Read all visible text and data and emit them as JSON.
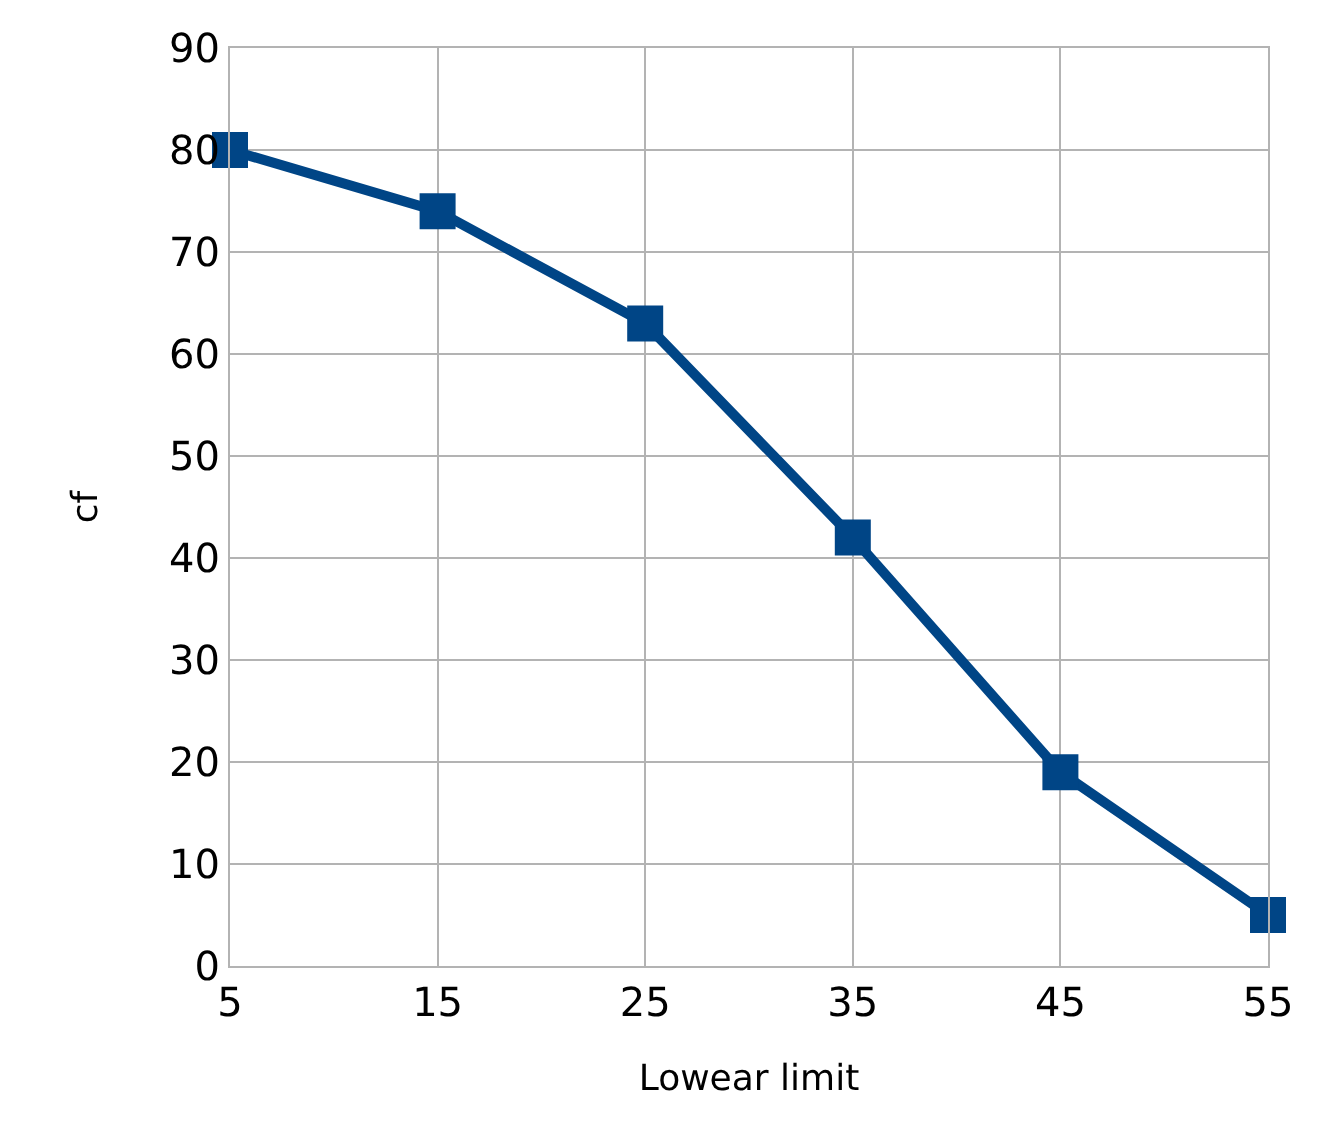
{
  "chart_data": {
    "type": "line",
    "xlabel": "Lowear limit",
    "ylabel": "cf",
    "x": [
      5,
      15,
      25,
      35,
      45,
      55
    ],
    "series": [
      {
        "color": "#004586",
        "values": [
          80,
          74,
          63,
          42,
          19,
          5
        ]
      }
    ],
    "xlim": [
      5,
      55
    ],
    "xticks": [
      5,
      15,
      25,
      35,
      45,
      55
    ],
    "ylim": [
      0,
      90
    ],
    "yticks": [
      0,
      10,
      20,
      30,
      40,
      50,
      60,
      70,
      80,
      90
    ],
    "grid": true,
    "legend": false,
    "marker": "square",
    "line_style": "solid"
  }
}
